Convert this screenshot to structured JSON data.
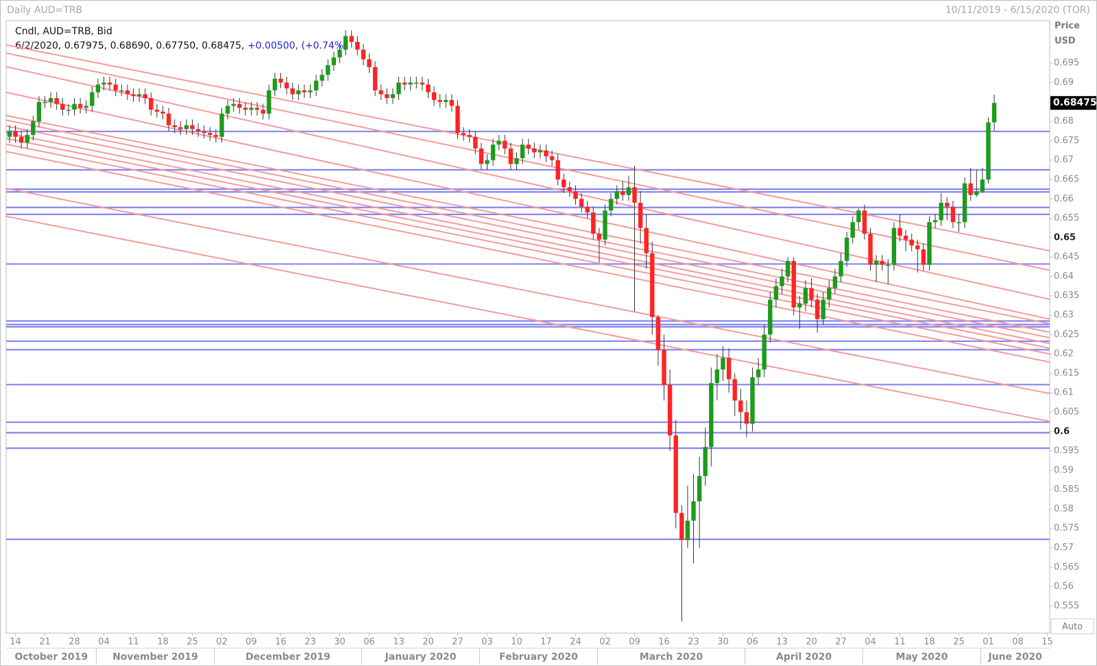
{
  "header": {
    "title": "Daily AUD=TRB",
    "range": "10/11/2019 - 6/15/2020 (TOR)"
  },
  "chart_data": {
    "type": "candlestick",
    "legend": "Cndl, AUD=TRB, Bid",
    "quote": "6/2/2020, 0.67975, 0.68690, 0.67750, 0.68475, ",
    "change": "+0.00500, (+0.74%)",
    "y_axis_label": "Price",
    "y_axis_unit": "USD",
    "scale_mode": "Auto",
    "up_color": "#1c9b1c",
    "down_color": "#ff2424",
    "ylim": [
      0.548,
      0.706
    ],
    "yticks": [
      0.555,
      0.56,
      0.565,
      0.57,
      0.575,
      0.58,
      0.585,
      0.59,
      0.595,
      0.6,
      0.605,
      0.61,
      0.615,
      0.62,
      0.625,
      0.63,
      0.635,
      0.64,
      0.645,
      0.65,
      0.655,
      0.66,
      0.665,
      0.67,
      0.675,
      0.68,
      0.685,
      0.69,
      0.695
    ],
    "xtick_labels": [
      "14",
      "21",
      "28",
      "04",
      "11",
      "18",
      "25",
      "02",
      "09",
      "16",
      "23",
      "30",
      "06",
      "13",
      "20",
      "27",
      "03",
      "10",
      "17",
      "24",
      "02",
      "09",
      "16",
      "23",
      "30",
      "06",
      "13",
      "20",
      "27",
      "04",
      "11",
      "18",
      "25",
      "01",
      "08",
      "15"
    ],
    "months": [
      "October 2019",
      "November 2019",
      "December 2019",
      "January 2020",
      "February 2020",
      "March 2020",
      "April 2020",
      "May 2020",
      "June 2020"
    ],
    "open": [
      0.676,
      0.6775,
      0.676,
      0.6745,
      0.6765,
      0.68,
      0.685,
      0.685,
      0.686,
      0.6845,
      0.683,
      0.683,
      0.6845,
      0.6835,
      0.684,
      0.6875,
      0.6895,
      0.69,
      0.6895,
      0.688,
      0.688,
      0.687,
      0.6865,
      0.687,
      0.686,
      0.683,
      0.6825,
      0.682,
      0.679,
      0.6785,
      0.678,
      0.679,
      0.678,
      0.6775,
      0.677,
      0.6765,
      0.676,
      0.682,
      0.684,
      0.6845,
      0.6835,
      0.683,
      0.6835,
      0.683,
      0.682,
      0.688,
      0.691,
      0.69,
      0.6885,
      0.687,
      0.688,
      0.6875,
      0.688,
      0.6905,
      0.692,
      0.6945,
      0.6965,
      0.6985,
      0.702,
      0.7005,
      0.6985,
      0.696,
      0.694,
      0.688,
      0.687,
      0.686,
      0.687,
      0.69,
      0.6895,
      0.69,
      0.69,
      0.6895,
      0.6875,
      0.6855,
      0.685,
      0.6855,
      0.684,
      0.677,
      0.6765,
      0.676,
      0.673,
      0.669,
      0.67,
      0.674,
      0.675,
      0.673,
      0.669,
      0.6705,
      0.674,
      0.673,
      0.672,
      0.6725,
      0.671,
      0.67,
      0.665,
      0.663,
      0.662,
      0.66,
      0.658,
      0.6565,
      0.651,
      0.6495,
      0.657,
      0.66,
      0.662,
      0.661,
      0.663,
      0.659,
      0.6525,
      0.646,
      0.6295,
      0.621,
      0.612,
      0.599,
      0.579,
      0.572,
      0.577,
      0.582,
      0.5885,
      0.596,
      0.6125,
      0.616,
      0.619,
      0.6135,
      0.608,
      0.605,
      0.602,
      0.614,
      0.616,
      0.625,
      0.634,
      0.6375,
      0.64,
      0.644,
      0.632,
      0.633,
      0.637,
      0.634,
      0.629,
      0.634,
      0.637,
      0.64,
      0.644,
      0.65,
      0.654,
      0.657,
      0.651,
      0.643,
      0.644,
      0.643,
      0.643,
      0.6525,
      0.6505,
      0.6495,
      0.648,
      0.647,
      0.643,
      0.654,
      0.6545,
      0.659,
      0.658,
      0.654,
      0.654,
      0.664,
      0.661,
      0.662,
      0.665,
      0.67975
    ],
    "high": [
      0.679,
      0.679,
      0.6775,
      0.678,
      0.6815,
      0.6865,
      0.6865,
      0.6875,
      0.6875,
      0.686,
      0.6845,
      0.686,
      0.686,
      0.6855,
      0.689,
      0.691,
      0.6915,
      0.6915,
      0.691,
      0.6895,
      0.6895,
      0.6885,
      0.6885,
      0.6885,
      0.6875,
      0.6845,
      0.684,
      0.6835,
      0.6805,
      0.68,
      0.6805,
      0.6805,
      0.6795,
      0.679,
      0.6785,
      0.678,
      0.6835,
      0.6855,
      0.686,
      0.686,
      0.685,
      0.685,
      0.685,
      0.6845,
      0.6895,
      0.6925,
      0.6925,
      0.6915,
      0.69,
      0.6895,
      0.6895,
      0.6895,
      0.692,
      0.6935,
      0.696,
      0.698,
      0.7,
      0.7035,
      0.7035,
      0.702,
      0.7,
      0.6975,
      0.6955,
      0.6895,
      0.6885,
      0.6885,
      0.6915,
      0.6915,
      0.6915,
      0.6915,
      0.6915,
      0.691,
      0.689,
      0.687,
      0.687,
      0.687,
      0.6855,
      0.6785,
      0.678,
      0.6775,
      0.6745,
      0.6715,
      0.6755,
      0.6765,
      0.6765,
      0.6745,
      0.672,
      0.6755,
      0.6755,
      0.6745,
      0.674,
      0.674,
      0.6725,
      0.6715,
      0.6665,
      0.6645,
      0.6635,
      0.6615,
      0.6595,
      0.658,
      0.6525,
      0.6585,
      0.6615,
      0.6635,
      0.6645,
      0.666,
      0.6685,
      0.662,
      0.656,
      0.649,
      0.63,
      0.625,
      0.616,
      0.603,
      0.581,
      0.586,
      0.589,
      0.5935,
      0.601,
      0.6165,
      0.62,
      0.622,
      0.6215,
      0.615,
      0.611,
      0.608,
      0.6165,
      0.619,
      0.6275,
      0.636,
      0.6395,
      0.642,
      0.645,
      0.645,
      0.635,
      0.639,
      0.6395,
      0.6355,
      0.636,
      0.639,
      0.642,
      0.646,
      0.6515,
      0.6555,
      0.6575,
      0.6585,
      0.6525,
      0.6455,
      0.6455,
      0.6445,
      0.654,
      0.656,
      0.652,
      0.651,
      0.6495,
      0.6485,
      0.6555,
      0.656,
      0.6615,
      0.6605,
      0.6595,
      0.656,
      0.6655,
      0.668,
      0.6675,
      0.668,
      0.681,
      0.6869
    ],
    "low": [
      0.6745,
      0.6745,
      0.673,
      0.673,
      0.675,
      0.6785,
      0.6835,
      0.6835,
      0.683,
      0.6815,
      0.6815,
      0.6815,
      0.682,
      0.682,
      0.6825,
      0.686,
      0.688,
      0.688,
      0.6865,
      0.6865,
      0.6855,
      0.685,
      0.685,
      0.6845,
      0.6815,
      0.681,
      0.6805,
      0.6775,
      0.677,
      0.6765,
      0.6765,
      0.6765,
      0.676,
      0.6755,
      0.675,
      0.6745,
      0.6745,
      0.6805,
      0.6825,
      0.682,
      0.6815,
      0.6815,
      0.6815,
      0.6805,
      0.6805,
      0.6865,
      0.6885,
      0.687,
      0.6855,
      0.6855,
      0.686,
      0.686,
      0.6865,
      0.689,
      0.6905,
      0.693,
      0.695,
      0.697,
      0.699,
      0.697,
      0.6945,
      0.6925,
      0.6865,
      0.6855,
      0.6845,
      0.6845,
      0.6855,
      0.688,
      0.688,
      0.6885,
      0.688,
      0.686,
      0.684,
      0.6835,
      0.6835,
      0.6825,
      0.6755,
      0.675,
      0.6745,
      0.6715,
      0.6675,
      0.6675,
      0.6685,
      0.6725,
      0.6715,
      0.6675,
      0.6675,
      0.669,
      0.6715,
      0.6705,
      0.6705,
      0.6695,
      0.6685,
      0.6635,
      0.6615,
      0.6605,
      0.6585,
      0.6565,
      0.655,
      0.6495,
      0.6435,
      0.648,
      0.6555,
      0.6585,
      0.6595,
      0.6595,
      0.631,
      0.6485,
      0.642,
      0.625,
      0.617,
      0.608,
      0.595,
      0.575,
      0.551,
      0.57,
      0.566,
      0.57,
      0.586,
      0.591,
      0.608,
      0.613,
      0.61,
      0.604,
      0.6005,
      0.5985,
      0.6,
      0.612,
      0.614,
      0.623,
      0.632,
      0.6355,
      0.6385,
      0.63,
      0.6265,
      0.631,
      0.632,
      0.6255,
      0.6275,
      0.632,
      0.6355,
      0.6385,
      0.6425,
      0.6485,
      0.652,
      0.6495,
      0.6415,
      0.6385,
      0.6415,
      0.638,
      0.6415,
      0.649,
      0.6465,
      0.6465,
      0.641,
      0.6415,
      0.6415,
      0.6525,
      0.653,
      0.6545,
      0.6525,
      0.6515,
      0.6525,
      0.6595,
      0.6605,
      0.6615,
      0.664,
      0.6775
    ],
    "close": [
      0.6775,
      0.676,
      0.6745,
      0.6765,
      0.68,
      0.685,
      0.685,
      0.686,
      0.6845,
      0.683,
      0.683,
      0.6845,
      0.6835,
      0.684,
      0.6875,
      0.6895,
      0.69,
      0.6895,
      0.688,
      0.688,
      0.687,
      0.6865,
      0.687,
      0.686,
      0.683,
      0.6825,
      0.682,
      0.679,
      0.6785,
      0.678,
      0.679,
      0.678,
      0.6775,
      0.677,
      0.6765,
      0.676,
      0.682,
      0.684,
      0.6845,
      0.6835,
      0.683,
      0.6835,
      0.683,
      0.682,
      0.688,
      0.691,
      0.69,
      0.6885,
      0.687,
      0.688,
      0.6875,
      0.688,
      0.6905,
      0.692,
      0.6945,
      0.6965,
      0.6985,
      0.702,
      0.7005,
      0.6985,
      0.696,
      0.694,
      0.688,
      0.687,
      0.686,
      0.687,
      0.69,
      0.6895,
      0.69,
      0.69,
      0.6895,
      0.6875,
      0.6855,
      0.685,
      0.6855,
      0.684,
      0.677,
      0.6765,
      0.676,
      0.673,
      0.669,
      0.67,
      0.674,
      0.675,
      0.673,
      0.669,
      0.6705,
      0.674,
      0.673,
      0.672,
      0.6725,
      0.671,
      0.67,
      0.665,
      0.663,
      0.662,
      0.66,
      0.658,
      0.6565,
      0.651,
      0.6495,
      0.657,
      0.66,
      0.662,
      0.661,
      0.663,
      0.659,
      0.6525,
      0.646,
      0.6295,
      0.621,
      0.612,
      0.599,
      0.579,
      0.572,
      0.577,
      0.582,
      0.5885,
      0.596,
      0.6125,
      0.616,
      0.619,
      0.6135,
      0.608,
      0.605,
      0.602,
      0.614,
      0.616,
      0.625,
      0.634,
      0.6375,
      0.64,
      0.644,
      0.632,
      0.633,
      0.637,
      0.634,
      0.629,
      0.634,
      0.637,
      0.64,
      0.644,
      0.65,
      0.654,
      0.657,
      0.651,
      0.643,
      0.644,
      0.643,
      0.643,
      0.6525,
      0.6505,
      0.6495,
      0.648,
      0.647,
      0.643,
      0.654,
      0.6545,
      0.659,
      0.658,
      0.654,
      0.654,
      0.664,
      0.661,
      0.662,
      0.665,
      0.67975,
      0.68475
    ],
    "hlines": {
      "color": "#8585f0",
      "values": [
        0.6774,
        0.6675,
        0.6625,
        0.6618,
        0.6578,
        0.656,
        0.6432,
        0.6285,
        0.6276,
        0.627,
        0.6233,
        0.6211,
        0.6121,
        0.6024,
        0.5997,
        0.5957,
        0.5722
      ]
    },
    "trendlines": {
      "color": "#f59a9a",
      "lines": [
        [
          0.6997,
          0.6466
        ],
        [
          0.6976,
          0.6416
        ],
        [
          0.6941,
          0.6341
        ],
        [
          0.6875,
          0.629
        ],
        [
          0.6815,
          0.6278
        ],
        [
          0.6803,
          0.6256
        ],
        [
          0.6788,
          0.6242
        ],
        [
          0.677,
          0.6227
        ],
        [
          0.6756,
          0.6215
        ],
        [
          0.6741,
          0.62
        ],
        [
          0.6722,
          0.6179
        ],
        [
          0.6627,
          0.6098
        ],
        [
          0.6555,
          0.6026
        ]
      ]
    }
  }
}
